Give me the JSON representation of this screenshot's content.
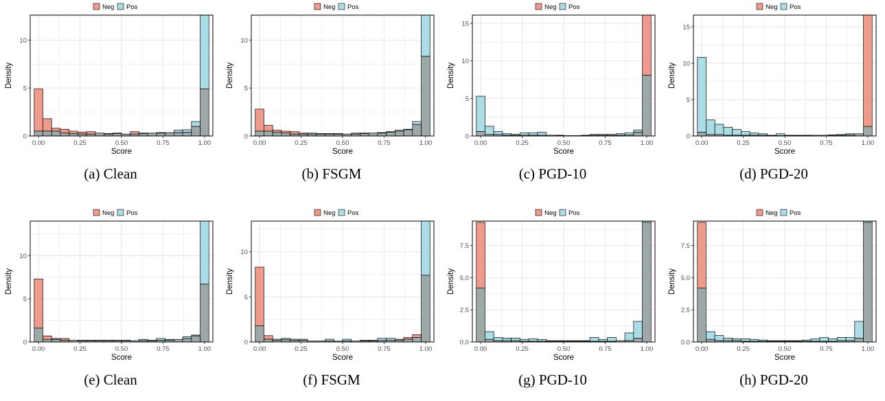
{
  "colors": {
    "neg": "#EE9A8C",
    "pos": "#ABDDE6",
    "overlap": "#9FA8A8",
    "grid": "#E6E6E6",
    "axis": "#000000"
  },
  "legend": {
    "neg": "Neg",
    "pos": "Pos"
  },
  "chart_data": [
    {
      "type": "bar",
      "caption": "(a) Clean",
      "xlabel": "Score",
      "ylabel": "Density",
      "legend_position": "top",
      "grid": true,
      "xlim": [
        -0.05,
        1.05
      ],
      "ylim": [
        0,
        12.6
      ],
      "xticks": [
        0,
        0.25,
        0.5,
        0.75,
        1
      ],
      "xtick_labels": [
        "0.00",
        "0.25",
        "0.50",
        "0.75",
        "1.00"
      ],
      "yticks": [
        0,
        5,
        10
      ],
      "ytick_labels": [
        "0",
        "5",
        "10"
      ],
      "bin_centers": [
        0,
        0.0526,
        0.1053,
        0.1579,
        0.2105,
        0.2632,
        0.3158,
        0.3684,
        0.4211,
        0.4737,
        0.5263,
        0.5789,
        0.6316,
        0.6842,
        0.7368,
        0.7895,
        0.8421,
        0.8947,
        0.9474,
        1
      ],
      "series": [
        {
          "name": "Neg",
          "values": [
            4.9,
            1.8,
            0.8,
            0.7,
            0.5,
            0.4,
            0.45,
            0.3,
            0.25,
            0.25,
            0.2,
            0.45,
            0.3,
            0.3,
            0.35,
            0.35,
            0.35,
            0.4,
            1.0,
            4.9
          ]
        },
        {
          "name": "Pos",
          "values": [
            0.5,
            0.5,
            0.5,
            0.3,
            0.25,
            0.2,
            0.2,
            0.3,
            0.2,
            0.3,
            0.2,
            0.2,
            0.25,
            0.3,
            0.3,
            0.35,
            0.6,
            0.65,
            1.5,
            12.6
          ]
        }
      ]
    },
    {
      "type": "bar",
      "caption": "(b) FSGM",
      "xlabel": "Score",
      "ylabel": "Density",
      "legend_position": "top",
      "grid": true,
      "xlim": [
        -0.05,
        1.05
      ],
      "ylim": [
        0,
        12.6
      ],
      "xticks": [
        0,
        0.25,
        0.5,
        0.75,
        1
      ],
      "xtick_labels": [
        "0.00",
        "0.25",
        "0.50",
        "0.75",
        "1.00"
      ],
      "yticks": [
        0,
        5,
        10
      ],
      "ytick_labels": [
        "0",
        "5",
        "10"
      ],
      "bin_centers": [
        0,
        0.0526,
        0.1053,
        0.1579,
        0.2105,
        0.2632,
        0.3158,
        0.3684,
        0.4211,
        0.4737,
        0.5263,
        0.5789,
        0.6316,
        0.6842,
        0.7368,
        0.7895,
        0.8421,
        0.8947,
        0.9474,
        1
      ],
      "series": [
        {
          "name": "Neg",
          "values": [
            2.8,
            1.1,
            0.6,
            0.5,
            0.45,
            0.3,
            0.2,
            0.2,
            0.25,
            0.25,
            0.2,
            0.3,
            0.3,
            0.3,
            0.3,
            0.4,
            0.5,
            0.65,
            1.2,
            8.3
          ]
        },
        {
          "name": "Pos",
          "values": [
            0.5,
            0.5,
            0.4,
            0.3,
            0.2,
            0.2,
            0.3,
            0.25,
            0.2,
            0.2,
            0.2,
            0.2,
            0.25,
            0.3,
            0.35,
            0.45,
            0.6,
            0.7,
            1.5,
            12.6
          ]
        }
      ]
    },
    {
      "type": "bar",
      "caption": "(c) PGD-10",
      "xlabel": "Score",
      "ylabel": "Density",
      "legend_position": "top",
      "grid": true,
      "xlim": [
        -0.05,
        1.05
      ],
      "ylim": [
        0,
        16.1
      ],
      "xticks": [
        0,
        0.25,
        0.5,
        0.75,
        1
      ],
      "xtick_labels": [
        "0.00",
        "0.25",
        "0.50",
        "0.75",
        "1.00"
      ],
      "yticks": [
        0,
        5,
        10,
        15
      ],
      "ytick_labels": [
        "0",
        "5",
        "10",
        "15"
      ],
      "bin_centers": [
        0,
        0.0526,
        0.1053,
        0.1579,
        0.2105,
        0.2632,
        0.3158,
        0.3684,
        0.4211,
        0.4737,
        0.5263,
        0.5789,
        0.6316,
        0.6842,
        0.7368,
        0.7895,
        0.8421,
        0.8947,
        0.9474,
        1
      ],
      "series": [
        {
          "name": "Neg",
          "values": [
            0.6,
            0.2,
            0.2,
            0.1,
            0.1,
            0.1,
            0.1,
            0.1,
            0.1,
            0.1,
            0.05,
            0.05,
            0.05,
            0.1,
            0.1,
            0.1,
            0.1,
            0.15,
            0.5,
            16.1
          ]
        },
        {
          "name": "Pos",
          "values": [
            5.3,
            1.3,
            0.6,
            0.3,
            0.2,
            0.4,
            0.4,
            0.5,
            0.1,
            0.05,
            0.05,
            0.05,
            0.1,
            0.2,
            0.2,
            0.2,
            0.3,
            0.4,
            0.8,
            8.1
          ]
        }
      ]
    },
    {
      "type": "bar",
      "caption": "(d) PGD-20",
      "xlabel": "Score",
      "ylabel": "Density",
      "legend_position": "top",
      "grid": true,
      "xlim": [
        -0.05,
        1.05
      ],
      "ylim": [
        0,
        16.6
      ],
      "xticks": [
        0,
        0.25,
        0.5,
        0.75,
        1
      ],
      "xtick_labels": [
        "0.00",
        "0.25",
        "0.50",
        "0.75",
        "1.00"
      ],
      "yticks": [
        0,
        5,
        10,
        15
      ],
      "ytick_labels": [
        "0",
        "5",
        "10",
        "15"
      ],
      "bin_centers": [
        0,
        0.0526,
        0.1053,
        0.1579,
        0.2105,
        0.2632,
        0.3158,
        0.3684,
        0.4211,
        0.4737,
        0.5263,
        0.5789,
        0.6316,
        0.6842,
        0.7368,
        0.7895,
        0.8421,
        0.8947,
        0.9474,
        1
      ],
      "series": [
        {
          "name": "Neg",
          "values": [
            0.5,
            0.2,
            0.2,
            0.1,
            0.1,
            0.1,
            0.1,
            0.1,
            0.05,
            0.05,
            0.05,
            0.05,
            0.1,
            0.1,
            0.1,
            0.1,
            0.1,
            0.15,
            0.3,
            16.6
          ]
        },
        {
          "name": "Pos",
          "values": [
            10.8,
            2.2,
            1.6,
            1.2,
            0.9,
            0.6,
            0.4,
            0.3,
            0.1,
            0.3,
            0.1,
            0.1,
            0.05,
            0.1,
            0.1,
            0.15,
            0.2,
            0.3,
            0.3,
            1.3
          ]
        }
      ]
    },
    {
      "type": "bar",
      "caption": "(e) Clean",
      "xlabel": "Score",
      "ylabel": "Density",
      "legend_position": "top",
      "grid": true,
      "xlim": [
        -0.05,
        1.05
      ],
      "ylim": [
        0,
        14.0
      ],
      "xticks": [
        0,
        0.25,
        0.5,
        0.75,
        1
      ],
      "xtick_labels": [
        "0.00",
        "0.25",
        "0.50",
        "0.75",
        "1.00"
      ],
      "yticks": [
        0,
        5,
        10
      ],
      "ytick_labels": [
        "0",
        "5",
        "10"
      ],
      "bin_centers": [
        0,
        0.0526,
        0.1053,
        0.1579,
        0.2105,
        0.2632,
        0.3158,
        0.3684,
        0.4211,
        0.4737,
        0.5263,
        0.5789,
        0.6316,
        0.6842,
        0.7368,
        0.7895,
        0.8421,
        0.8947,
        0.9474,
        1
      ],
      "series": [
        {
          "name": "Neg",
          "values": [
            7.3,
            0.7,
            0.4,
            0.4,
            0.2,
            0.2,
            0.15,
            0.15,
            0.15,
            0.15,
            0.15,
            0.15,
            0.15,
            0.15,
            0.2,
            0.2,
            0.3,
            0.4,
            0.7,
            6.7
          ]
        },
        {
          "name": "Pos",
          "values": [
            1.6,
            0.3,
            0.3,
            0.2,
            0.2,
            0.15,
            0.2,
            0.2,
            0.2,
            0.2,
            0.2,
            0.15,
            0.3,
            0.2,
            0.4,
            0.3,
            0.3,
            0.6,
            0.8,
            14.0
          ]
        }
      ]
    },
    {
      "type": "bar",
      "caption": "(f) FSGM",
      "xlabel": "Score",
      "ylabel": "Density",
      "legend_position": "top",
      "grid": true,
      "xlim": [
        -0.05,
        1.05
      ],
      "ylim": [
        0,
        13.4
      ],
      "xticks": [
        0,
        0.25,
        0.5,
        0.75,
        1
      ],
      "xtick_labels": [
        "0.00",
        "0.25",
        "0.50",
        "0.75",
        "1.00"
      ],
      "yticks": [
        0,
        5,
        10
      ],
      "ytick_labels": [
        "0",
        "5",
        "10"
      ],
      "bin_centers": [
        0,
        0.0526,
        0.1053,
        0.1579,
        0.2105,
        0.2632,
        0.3158,
        0.3684,
        0.4211,
        0.4737,
        0.5263,
        0.5789,
        0.6316,
        0.6842,
        0.7368,
        0.7895,
        0.8421,
        0.8947,
        0.9474,
        1
      ],
      "series": [
        {
          "name": "Neg",
          "values": [
            8.3,
            0.7,
            0.2,
            0.25,
            0.2,
            0.2,
            0.1,
            0.1,
            0.1,
            0.1,
            0.1,
            0.1,
            0.1,
            0.1,
            0.15,
            0.2,
            0.3,
            0.5,
            0.8,
            7.4
          ]
        },
        {
          "name": "Pos",
          "values": [
            1.8,
            0.3,
            0.3,
            0.4,
            0.3,
            0.3,
            0.1,
            0.1,
            0.3,
            0.1,
            0.3,
            0.1,
            0.2,
            0.2,
            0.4,
            0.4,
            0.2,
            0.3,
            0.5,
            13.4
          ]
        }
      ]
    },
    {
      "type": "bar",
      "caption": "(g) PGD-10",
      "xlabel": "Score",
      "ylabel": "Density",
      "legend_position": "top",
      "grid": true,
      "xlim": [
        -0.05,
        1.05
      ],
      "ylim": [
        0,
        9.4
      ],
      "xticks": [
        0,
        0.25,
        0.5,
        0.75,
        1
      ],
      "xtick_labels": [
        "0.00",
        "0.25",
        "0.50",
        "0.75",
        "1.00"
      ],
      "yticks": [
        0,
        2.5,
        5,
        7.5
      ],
      "ytick_labels": [
        "0.0",
        "2.5",
        "5.0",
        "7.5"
      ],
      "bin_centers": [
        0,
        0.0526,
        0.1053,
        0.1579,
        0.2105,
        0.2632,
        0.3158,
        0.3684,
        0.4211,
        0.4737,
        0.5263,
        0.5789,
        0.6316,
        0.6842,
        0.7368,
        0.7895,
        0.8421,
        0.8947,
        0.9474,
        1
      ],
      "series": [
        {
          "name": "Neg",
          "values": [
            9.3,
            0.2,
            0.1,
            0.1,
            0.1,
            0.05,
            0.05,
            0.05,
            0.05,
            0.05,
            0.05,
            0.05,
            0.05,
            0.05,
            0.05,
            0.05,
            0.1,
            0.1,
            0.3,
            9.3
          ]
        },
        {
          "name": "Pos",
          "values": [
            4.2,
            0.8,
            0.35,
            0.3,
            0.3,
            0.2,
            0.25,
            0.2,
            0.1,
            0.1,
            0.1,
            0.1,
            0.1,
            0.35,
            0.2,
            0.35,
            0.1,
            0.7,
            1.6,
            9.4
          ]
        }
      ]
    },
    {
      "type": "bar",
      "caption": "(h) PGD-20",
      "xlabel": "Score",
      "ylabel": "Density",
      "legend_position": "top",
      "grid": true,
      "xlim": [
        -0.05,
        1.05
      ],
      "ylim": [
        0,
        9.4
      ],
      "xticks": [
        0,
        0.25,
        0.5,
        0.75,
        1
      ],
      "xtick_labels": [
        "0.00",
        "0.25",
        "0.50",
        "0.75",
        "1.00"
      ],
      "yticks": [
        0,
        2.5,
        5,
        7.5
      ],
      "ytick_labels": [
        "0.0",
        "2.5",
        "5.0",
        "7.5"
      ],
      "bin_centers": [
        0,
        0.0526,
        0.1053,
        0.1579,
        0.2105,
        0.2632,
        0.3158,
        0.3684,
        0.4211,
        0.4737,
        0.5263,
        0.5789,
        0.6316,
        0.6842,
        0.7368,
        0.7895,
        0.8421,
        0.8947,
        0.9474,
        1
      ],
      "series": [
        {
          "name": "Neg",
          "values": [
            9.3,
            0.2,
            0.1,
            0.1,
            0.1,
            0.05,
            0.05,
            0.05,
            0.05,
            0.05,
            0.05,
            0.05,
            0.05,
            0.05,
            0.05,
            0.05,
            0.1,
            0.1,
            0.3,
            9.3
          ]
        },
        {
          "name": "Pos",
          "values": [
            4.2,
            0.8,
            0.5,
            0.3,
            0.25,
            0.25,
            0.2,
            0.15,
            0.1,
            0.1,
            0.1,
            0.1,
            0.15,
            0.25,
            0.35,
            0.25,
            0.35,
            0.35,
            1.6,
            9.4
          ]
        }
      ]
    }
  ]
}
